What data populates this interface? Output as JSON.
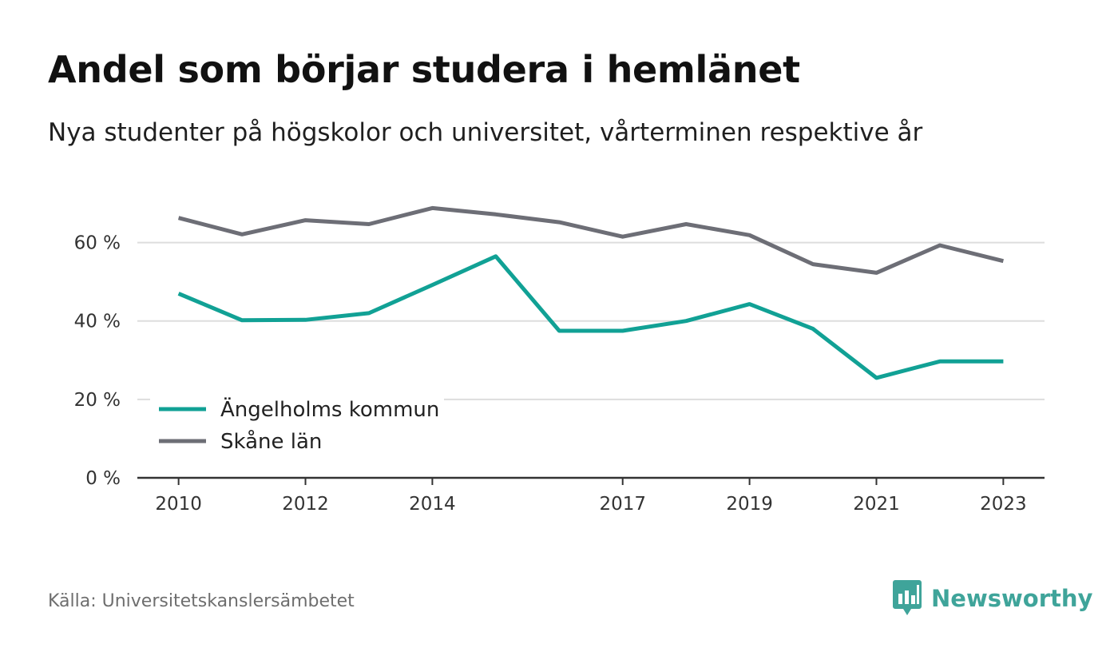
{
  "title": "Andel som börjar studera i hemlänet",
  "subtitle": "Nya studenter på högskolor och universitet, vårterminen respektive år",
  "source": "Källa: Universitetskanslersämbetet",
  "brand": {
    "name": "Newsworthy",
    "icon": "newsworthy-logo-icon",
    "color": "#3fa49a"
  },
  "chart_data": {
    "type": "line",
    "title": "Andel som börjar studera i hemlänet",
    "subtitle": "Nya studenter på högskolor och universitet, vårterminen respektive år",
    "xlabel": "",
    "ylabel": "",
    "x": [
      2010,
      2011,
      2012,
      2013,
      2014,
      2015,
      2016,
      2017,
      2018,
      2019,
      2020,
      2021,
      2022,
      2023
    ],
    "x_tick_labels": [
      "2010",
      "2012",
      "2014",
      "2017",
      "2019",
      "2021",
      "2023"
    ],
    "y_ticks": [
      0,
      20,
      40,
      60
    ],
    "y_tick_labels": [
      "0 %",
      "20 %",
      "40 %",
      "60 %"
    ],
    "xlim": [
      2009.35,
      2023.65
    ],
    "ylim": [
      0,
      75
    ],
    "grid": true,
    "legend_position": "bottom-left",
    "series": [
      {
        "name": "Ängelholms kommun",
        "color": "#11a195",
        "values": [
          47.0,
          40.2,
          40.3,
          42.0,
          49.2,
          56.5,
          37.5,
          37.5,
          40.0,
          44.3,
          38.0,
          25.5,
          29.7,
          29.7
        ]
      },
      {
        "name": "Skåne län",
        "color": "#6d6e76",
        "values": [
          66.3,
          62.1,
          65.7,
          64.7,
          68.8,
          67.2,
          65.2,
          61.5,
          64.7,
          61.9,
          54.5,
          52.3,
          59.3,
          55.3
        ]
      }
    ]
  }
}
